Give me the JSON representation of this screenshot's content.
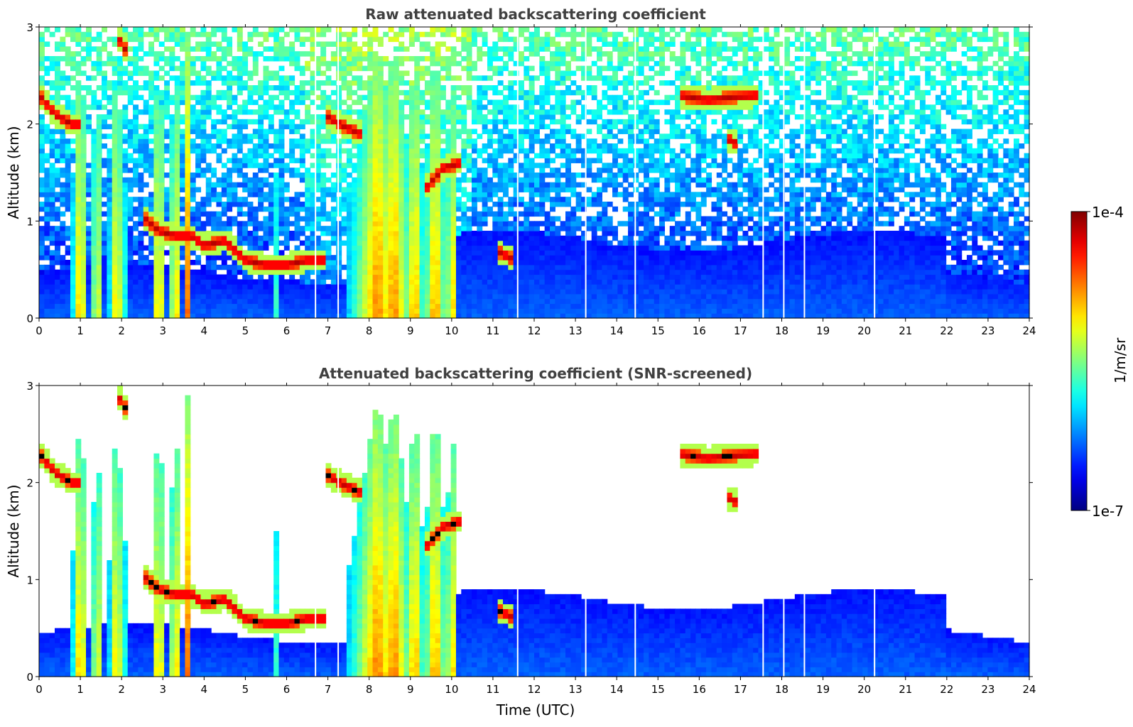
{
  "chart_data": [
    {
      "type": "heatmap",
      "title": "Raw attenuated backscattering coefficient",
      "xlabel": "",
      "ylabel": "Altitude (km)",
      "xlim": [
        0,
        24
      ],
      "ylim": [
        0,
        3
      ],
      "xticks": [
        "0",
        "1",
        "2",
        "3",
        "4",
        "5",
        "6",
        "7",
        "8",
        "9",
        "10",
        "11",
        "12",
        "13",
        "14",
        "15",
        "16",
        "17",
        "18",
        "19",
        "20",
        "21",
        "22",
        "23",
        "24"
      ],
      "yticks": [
        "0",
        "1",
        "2",
        "3"
      ],
      "screened": false
    },
    {
      "type": "heatmap",
      "title": "Attenuated backscattering coefficient (SNR-screened)",
      "xlabel": "Time (UTC)",
      "ylabel": "Altitude (km)",
      "xlim": [
        0,
        24
      ],
      "ylim": [
        0,
        3
      ],
      "xticks": [
        "0",
        "1",
        "2",
        "3",
        "4",
        "5",
        "6",
        "7",
        "8",
        "9",
        "10",
        "11",
        "12",
        "13",
        "14",
        "15",
        "16",
        "17",
        "18",
        "19",
        "20",
        "21",
        "22",
        "23",
        "24"
      ],
      "yticks": [
        "0",
        "1",
        "2",
        "3"
      ],
      "screened": true
    }
  ],
  "colorbar": {
    "label": "1/m/sr",
    "max_label": "1e-4",
    "min_label": "1e-7",
    "colormap": "jet"
  },
  "features": {
    "cloud_layers": [
      [
        [
          0,
          2.3
        ],
        [
          0.4,
          2.1
        ],
        [
          0.8,
          2.0
        ],
        [
          1.0,
          2.0
        ]
      ],
      [
        [
          1.9,
          2.9
        ],
        [
          2.2,
          2.7
        ]
      ],
      [
        [
          2.5,
          1.05
        ],
        [
          2.9,
          0.9
        ],
        [
          3.3,
          0.85
        ],
        [
          3.7,
          0.85
        ],
        [
          4.0,
          0.75
        ],
        [
          4.5,
          0.8
        ],
        [
          5.0,
          0.6
        ],
        [
          5.5,
          0.55
        ],
        [
          6.0,
          0.55
        ],
        [
          6.5,
          0.6
        ],
        [
          6.9,
          0.6
        ]
      ],
      [
        [
          6.9,
          2.1
        ],
        [
          7.3,
          2.0
        ],
        [
          7.8,
          1.9
        ]
      ],
      [
        [
          9.4,
          1.35
        ],
        [
          9.8,
          1.55
        ],
        [
          10.2,
          1.6
        ]
      ],
      [
        [
          11.1,
          0.7
        ],
        [
          11.5,
          0.6
        ]
      ],
      [
        [
          15.5,
          2.3
        ],
        [
          16.2,
          2.25
        ],
        [
          16.8,
          2.28
        ],
        [
          17.4,
          2.3
        ]
      ],
      [
        [
          16.7,
          1.85
        ],
        [
          16.9,
          1.8
        ]
      ]
    ],
    "precip_columns": [
      [
        1.0,
        0.2
      ],
      [
        1.4,
        0.12
      ],
      [
        1.8,
        0.1
      ],
      [
        2.0,
        0.1
      ],
      [
        2.9,
        0.18
      ],
      [
        3.3,
        0.15
      ],
      [
        3.6,
        0.1
      ],
      [
        5.7,
        0.06
      ],
      [
        6.2,
        0.05
      ],
      [
        7.2,
        0.06
      ],
      [
        8.2,
        0.7
      ],
      [
        8.6,
        0.5
      ],
      [
        9.1,
        0.25
      ],
      [
        9.6,
        0.3
      ],
      [
        10.0,
        0.15
      ]
    ],
    "data_gaps": [
      6.7,
      7.25,
      11.6,
      13.25,
      14.45,
      17.55,
      18.05,
      18.55,
      20.25
    ]
  }
}
